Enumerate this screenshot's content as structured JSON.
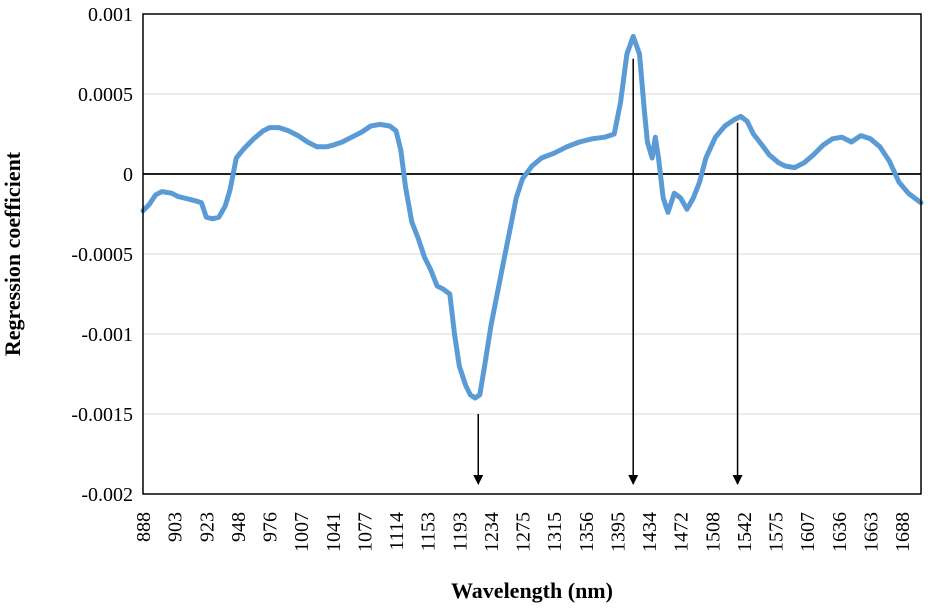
{
  "chart_data": {
    "type": "line",
    "title": "",
    "xlabel": "Wavelength (nm)",
    "ylabel": "Regression coefficient",
    "ylim": [
      -0.002,
      0.001
    ],
    "yticks": [
      "0.001",
      "0.0005",
      "0",
      "-0.0005",
      "-0.001",
      "-0.0015",
      "-0.002"
    ],
    "ytick_values": [
      0.001,
      0.0005,
      0,
      -0.0005,
      -0.001,
      -0.0015,
      -0.002
    ],
    "xticks": [
      "888",
      "903",
      "923",
      "948",
      "976",
      "1007",
      "1041",
      "1077",
      "1114",
      "1153",
      "1193",
      "1234",
      "1275",
      "1315",
      "1356",
      "1395",
      "1434",
      "1472",
      "1508",
      "1542",
      "1575",
      "1607",
      "1636",
      "1663",
      "1688"
    ],
    "grid": {
      "horizontal": true,
      "vertical": false
    },
    "line_color": "#5b9bd5",
    "series": [
      {
        "name": "",
        "index_range": [
          0,
          24.6
        ],
        "points": [
          [
            0,
            -0.00023
          ],
          [
            0.2,
            -0.00019
          ],
          [
            0.4,
            -0.00013
          ],
          [
            0.6,
            -0.00011
          ],
          [
            0.9,
            -0.00012
          ],
          [
            1.1,
            -0.00014
          ],
          [
            1.3,
            -0.00015
          ],
          [
            1.5,
            -0.00016
          ],
          [
            1.7,
            -0.00017
          ],
          [
            1.85,
            -0.00018
          ],
          [
            2.0,
            -0.00027
          ],
          [
            2.2,
            -0.00028
          ],
          [
            2.4,
            -0.00027
          ],
          [
            2.6,
            -0.0002
          ],
          [
            2.75,
            -0.0001
          ],
          [
            2.95,
            0.0001
          ],
          [
            3.2,
            0.00016
          ],
          [
            3.5,
            0.00022
          ],
          [
            3.8,
            0.00027
          ],
          [
            4.0,
            0.00029
          ],
          [
            4.3,
            0.00029
          ],
          [
            4.6,
            0.00027
          ],
          [
            4.9,
            0.00024
          ],
          [
            5.2,
            0.0002
          ],
          [
            5.5,
            0.00017
          ],
          [
            5.8,
            0.00017
          ],
          [
            6.0,
            0.00018
          ],
          [
            6.3,
            0.0002
          ],
          [
            6.6,
            0.00023
          ],
          [
            6.9,
            0.00026
          ],
          [
            7.2,
            0.0003
          ],
          [
            7.5,
            0.00031
          ],
          [
            7.8,
            0.0003
          ],
          [
            8.0,
            0.00027
          ],
          [
            8.15,
            0.00015
          ],
          [
            8.3,
            -8e-05
          ],
          [
            8.5,
            -0.0003
          ],
          [
            8.7,
            -0.0004
          ],
          [
            8.9,
            -0.00052
          ],
          [
            9.1,
            -0.0006
          ],
          [
            9.3,
            -0.0007
          ],
          [
            9.5,
            -0.00072
          ],
          [
            9.7,
            -0.00075
          ],
          [
            9.85,
            -0.001
          ],
          [
            10.0,
            -0.0012
          ],
          [
            10.2,
            -0.00132
          ],
          [
            10.35,
            -0.00138
          ],
          [
            10.5,
            -0.0014
          ],
          [
            10.65,
            -0.00138
          ],
          [
            10.8,
            -0.0012
          ],
          [
            11.0,
            -0.00095
          ],
          [
            11.2,
            -0.00075
          ],
          [
            11.4,
            -0.00055
          ],
          [
            11.6,
            -0.00035
          ],
          [
            11.8,
            -0.00015
          ],
          [
            12.0,
            -3e-05
          ],
          [
            12.3,
            5e-05
          ],
          [
            12.6,
            0.0001
          ],
          [
            13.0,
            0.00013
          ],
          [
            13.4,
            0.00017
          ],
          [
            13.8,
            0.0002
          ],
          [
            14.2,
            0.00022
          ],
          [
            14.6,
            0.00023
          ],
          [
            14.9,
            0.00025
          ],
          [
            15.1,
            0.00045
          ],
          [
            15.3,
            0.00075
          ],
          [
            15.5,
            0.00086
          ],
          [
            15.7,
            0.00075
          ],
          [
            15.85,
            0.0004
          ],
          [
            15.95,
            0.0002
          ],
          [
            16.1,
            0.0001
          ],
          [
            16.2,
            0.00023
          ],
          [
            16.3,
            0.0001
          ],
          [
            16.45,
            -0.00015
          ],
          [
            16.6,
            -0.00024
          ],
          [
            16.8,
            -0.00012
          ],
          [
            17.0,
            -0.00015
          ],
          [
            17.2,
            -0.00022
          ],
          [
            17.4,
            -0.00015
          ],
          [
            17.6,
            -5e-05
          ],
          [
            17.8,
            0.0001
          ],
          [
            18.1,
            0.00023
          ],
          [
            18.4,
            0.0003
          ],
          [
            18.7,
            0.00034
          ],
          [
            18.9,
            0.00036
          ],
          [
            19.1,
            0.00033
          ],
          [
            19.3,
            0.00025
          ],
          [
            19.5,
            0.0002
          ],
          [
            19.8,
            0.00012
          ],
          [
            20.1,
            7e-05
          ],
          [
            20.3,
            5e-05
          ],
          [
            20.6,
            4e-05
          ],
          [
            20.9,
            7e-05
          ],
          [
            21.2,
            0.00012
          ],
          [
            21.5,
            0.00018
          ],
          [
            21.8,
            0.00022
          ],
          [
            22.1,
            0.00023
          ],
          [
            22.4,
            0.0002
          ],
          [
            22.7,
            0.00024
          ],
          [
            23.0,
            0.00022
          ],
          [
            23.3,
            0.00017
          ],
          [
            23.6,
            8e-05
          ],
          [
            23.9,
            -5e-05
          ],
          [
            24.2,
            -0.00012
          ],
          [
            24.6,
            -0.00018
          ]
        ]
      }
    ],
    "annotations": [
      {
        "type": "arrow",
        "label": "",
        "x_index": 10.6,
        "from_value": -0.0015,
        "to_value": -0.002
      },
      {
        "type": "arrow",
        "label": "",
        "x_index": 15.5,
        "from_value": 0.00072,
        "to_value": -0.002
      },
      {
        "type": "arrow",
        "label": "",
        "x_index": 18.8,
        "from_value": 0.00032,
        "to_value": -0.002
      }
    ]
  }
}
